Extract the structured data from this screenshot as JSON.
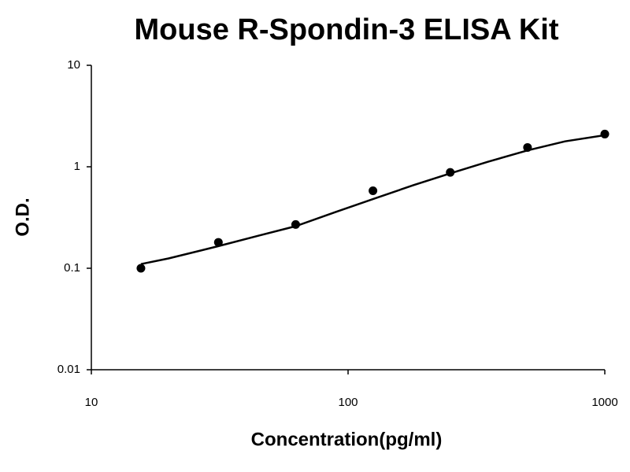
{
  "chart_data": {
    "type": "scatter",
    "title": "Mouse R-Spondin-3 ELISA Kit",
    "x_label": "Concentration(pg/ml)",
    "y_label": "O.D.",
    "x": [
      15.6,
      31.25,
      62.5,
      125,
      250,
      500,
      1000
    ],
    "values": [
      0.1,
      0.18,
      0.27,
      0.58,
      0.88,
      1.55,
      2.1
    ],
    "color": "#000000",
    "fit": {
      "x": [
        15.6,
        20,
        31.25,
        45,
        62.5,
        90,
        125,
        180,
        250,
        350,
        500,
        700,
        1000
      ],
      "values": [
        0.11,
        0.125,
        0.165,
        0.21,
        0.26,
        0.36,
        0.48,
        0.66,
        0.86,
        1.12,
        1.45,
        1.78,
        2.05
      ]
    },
    "xlim": [
      10,
      1000
    ],
    "ylim": [
      0.01,
      10
    ],
    "xticks": [
      10,
      100,
      1000
    ],
    "yticks": [
      0.01,
      0.1,
      1,
      10
    ],
    "xlog": true,
    "ylog": true,
    "grid": false
  }
}
